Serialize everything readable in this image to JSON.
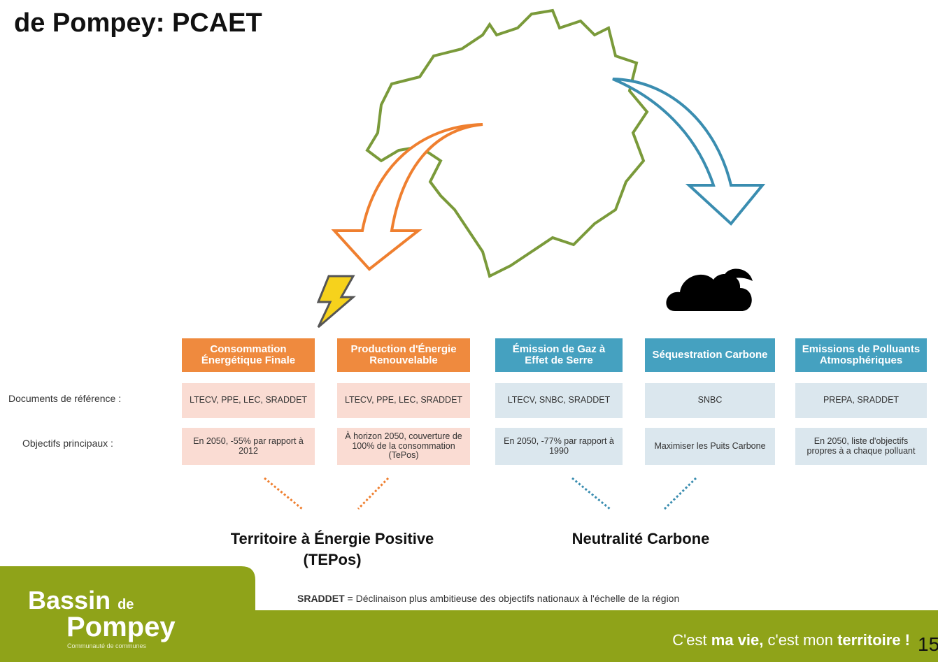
{
  "header": {
    "title": "de Pompey: PCAET"
  },
  "row_labels": [
    "Documents de référence :",
    "Objectifs principaux :"
  ],
  "columns": [
    {
      "header": "Consommation Énergétique Finale",
      "refs": "LTECV, PPE, LEC, SRADDET",
      "objective": "En 2050, -55% par rapport à 2012",
      "group": "energy"
    },
    {
      "header": "Production d'Énergie Renouvelable",
      "refs": "LTECV, PPE, LEC, SRADDET",
      "objective": "À horizon 2050, couverture de 100% de la consommation (TePos)",
      "group": "energy"
    },
    {
      "header": "Émission de Gaz à Effet de Serre",
      "refs": "LTECV, SNBC, SRADDET",
      "objective": "En 2050, -77% par rapport à 1990",
      "group": "carbon"
    },
    {
      "header": "Séquestration Carbone",
      "refs": "SNBC",
      "objective": "Maximiser les Puits Carbone",
      "group": "carbon"
    },
    {
      "header": "Emissions de Polluants Atmosphériques",
      "refs": "PREPA, SRADDET",
      "objective": "En 2050, liste d'objectifs propres à a chaque polluant",
      "group": "carbon"
    }
  ],
  "outcomes": [
    {
      "line1": "Territoire à Énergie Positive",
      "line2": "(TEPos)"
    },
    {
      "line1": "Neutralité Carbone"
    }
  ],
  "footnote": {
    "term": "SRADDET",
    "text": " = Déclinaison plus ambitieuse des objectifs nationaux à l'échelle de la région"
  },
  "logo": {
    "line1": "Bassin",
    "small": "de",
    "line2": "Pompey",
    "sub": "Communauté de communes"
  },
  "slogan": [
    "C'est ",
    "ma ",
    "vie, ",
    "c'est mon ",
    "territoire !"
  ],
  "page_number": "15"
}
